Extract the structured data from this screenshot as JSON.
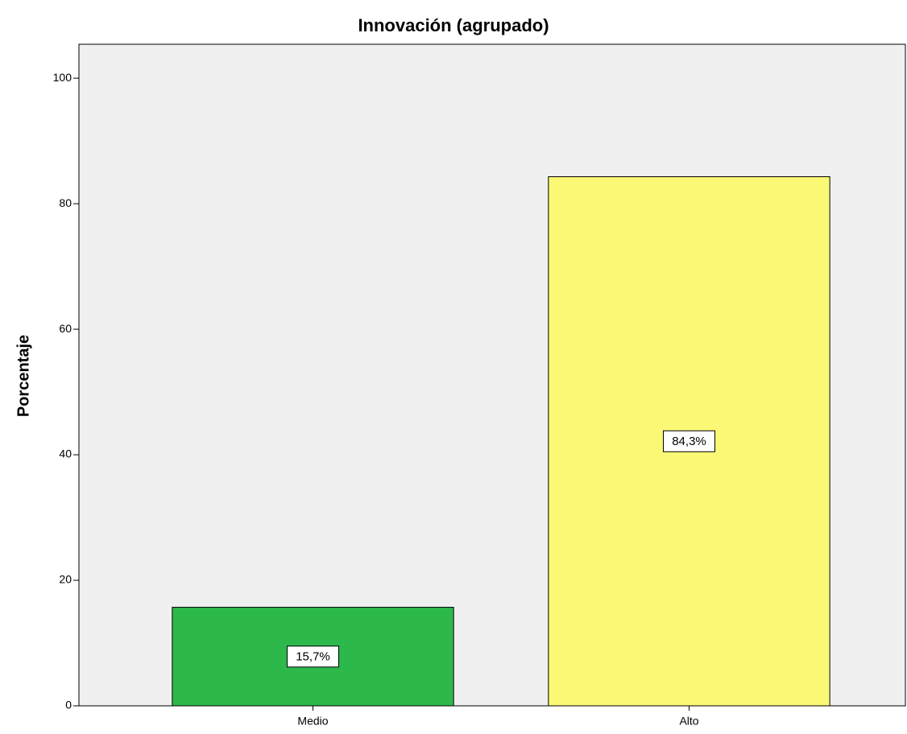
{
  "chart_data": {
    "type": "bar",
    "title": "Innovación (agrupado)",
    "y_label": "Porcentaje",
    "categories": [
      "Medio",
      "Alto"
    ],
    "values": [
      15.7,
      84.3
    ],
    "value_labels": [
      "15,7%",
      "84,3%"
    ],
    "colors": [
      "#2db84b",
      "#fbf876"
    ],
    "ylim": [
      0,
      105.4
    ],
    "yticks": [
      0,
      20,
      40,
      60,
      80,
      100
    ],
    "grid": false
  }
}
